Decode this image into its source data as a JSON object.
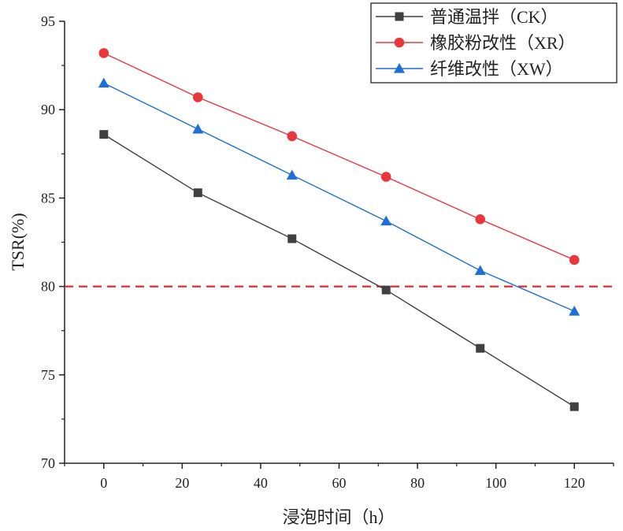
{
  "chart_data": {
    "type": "line",
    "xlabel": "浸泡时间（h）",
    "ylabel": "TSR(%)",
    "x": [
      0,
      24,
      48,
      72,
      96,
      120
    ],
    "xlim": [
      -10,
      130
    ],
    "ylim": [
      70,
      95
    ],
    "xticks": [
      0,
      20,
      40,
      60,
      80,
      100,
      120
    ],
    "yticks": [
      70,
      75,
      80,
      85,
      90,
      95
    ],
    "xtick_labels": [
      "0",
      "20",
      "40",
      "60",
      "80",
      "100",
      "120"
    ],
    "ytick_labels": [
      "70",
      "75",
      "80",
      "85",
      "90",
      "95"
    ],
    "grid": false,
    "legend_position": "top-right",
    "reference_line": {
      "y": 80,
      "color": "#e8262b",
      "style": "dashed"
    },
    "series": [
      {
        "name": "普通温拌（CK）",
        "marker": "square",
        "color": "#404040",
        "values": [
          88.6,
          85.3,
          82.7,
          79.8,
          76.5,
          73.2
        ]
      },
      {
        "name": "橡胶粉改性（XR）",
        "marker": "circle",
        "color": "#e8383d",
        "values": [
          93.2,
          90.7,
          88.5,
          86.2,
          83.8,
          81.5
        ]
      },
      {
        "name": "纤维改性（XW）",
        "marker": "triangle",
        "color": "#1f6fd6",
        "values": [
          91.5,
          88.9,
          86.3,
          83.7,
          80.9,
          78.6
        ]
      }
    ]
  }
}
